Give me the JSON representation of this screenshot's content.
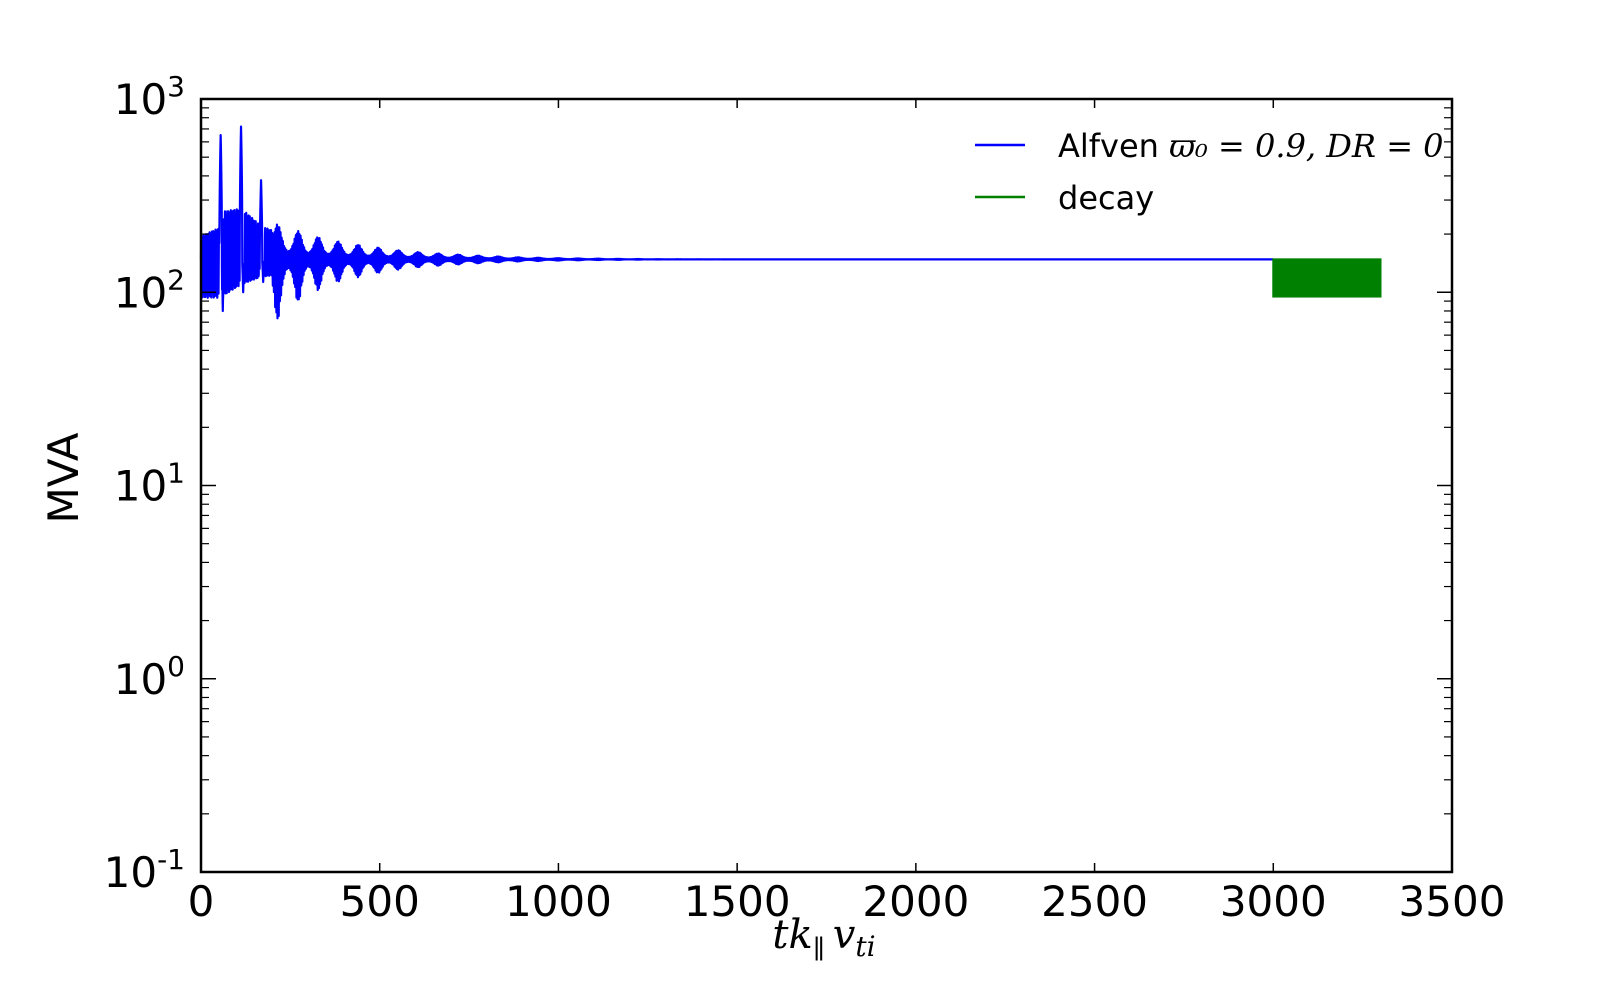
{
  "chart_data": {
    "type": "line",
    "xlabel": "tk∥ v_ti",
    "xlabel_parts": {
      "t": "tk",
      "par": "∥",
      "v": "v",
      "sub": "ti"
    },
    "ylabel": "MVA",
    "xlim": [
      0,
      3500
    ],
    "ylim": [
      0.1,
      1000
    ],
    "yscale": "log",
    "x_ticks": [
      "0",
      "500",
      "1000",
      "1500",
      "2000",
      "2500",
      "3000",
      "3500"
    ],
    "x_tick_values": [
      0,
      500,
      1000,
      1500,
      2000,
      2500,
      3000,
      3500
    ],
    "y_ticks": [
      {
        "base": "10",
        "exp": "-1",
        "value": 0.1
      },
      {
        "base": "10",
        "exp": "0",
        "value": 1
      },
      {
        "base": "10",
        "exp": "1",
        "value": 10
      },
      {
        "base": "10",
        "exp": "2",
        "value": 100
      },
      {
        "base": "10",
        "exp": "3",
        "value": 1000
      }
    ],
    "grid": false,
    "legend_position": "top-right",
    "series": [
      {
        "name": "Alfven ϖ₀ = 0.9, DR = 0",
        "legend_parts": {
          "word": "Alfven",
          "math": "ϖ₀ = 0.9, DR = 0"
        },
        "color": "#0000ff",
        "baseline": 148,
        "peak_x": [
          55,
          112,
          168,
          224,
          280,
          336,
          392,
          448,
          504,
          560,
          616,
          672,
          728,
          784,
          840,
          896,
          952,
          1008,
          1064,
          1120,
          1176,
          1232
        ],
        "peak_max": [
          650,
          720,
          380,
          250,
          240,
          215,
          200,
          190,
          180,
          172,
          167,
          163,
          160,
          157,
          155,
          153,
          152,
          151,
          150.5,
          150,
          149.5,
          149
        ],
        "peak_min": [
          80,
          100,
          113,
          118,
          124,
          128,
          132,
          135,
          137,
          139,
          141,
          142,
          143,
          144,
          145,
          146,
          146.5,
          147,
          147.3,
          147.6,
          147.8,
          148
        ],
        "x_end": 3000
      },
      {
        "name": "decay",
        "color": "#008000",
        "x_start": 3000,
        "x_end": 3300,
        "y_upper": 148,
        "y_lower": 95
      }
    ]
  }
}
